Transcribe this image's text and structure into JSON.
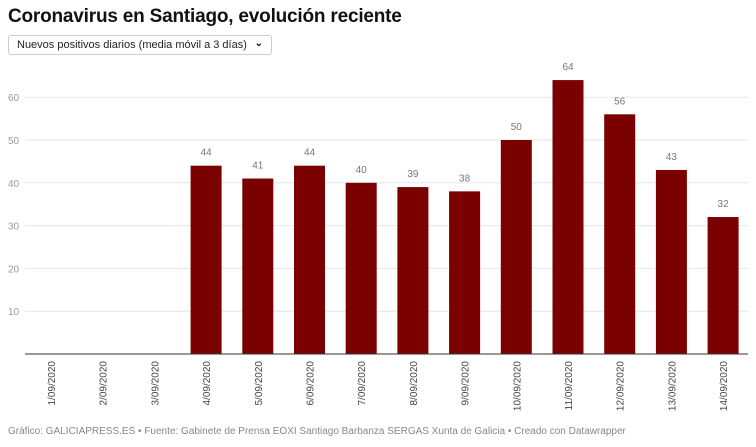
{
  "title": "Coronavirus en Santiago, evolución reciente",
  "selector": {
    "value": "Nuevos positivos diarios (media móvil a 3 días)",
    "icon": "chevron-down-icon"
  },
  "footer": "Gráfico: GALICIAPRESS.ES • Fuente: Gabinete de Prensa EOXI Santiago Barbanza SERGAS Xunta de Galicia • Creado con Datawrapper",
  "chart_data": {
    "type": "bar",
    "title": "Coronavirus en Santiago, evolución reciente",
    "categories": [
      "1/09/2020",
      "2/09/2020",
      "3/09/2020",
      "4/09/2020",
      "5/09/2020",
      "6/09/2020",
      "7/09/2020",
      "8/09/2020",
      "9/09/2020",
      "10/09/2020",
      "11/09/2020",
      "12/09/2020",
      "13/09/2020",
      "14/09/2020"
    ],
    "values": [
      null,
      null,
      null,
      44,
      41,
      44,
      40,
      39,
      38,
      50,
      64,
      56,
      43,
      32
    ],
    "yticks": [
      10,
      20,
      30,
      40,
      50,
      60
    ],
    "ylim": [
      0,
      65
    ],
    "grid": true,
    "bar_color": "#7b0000"
  }
}
